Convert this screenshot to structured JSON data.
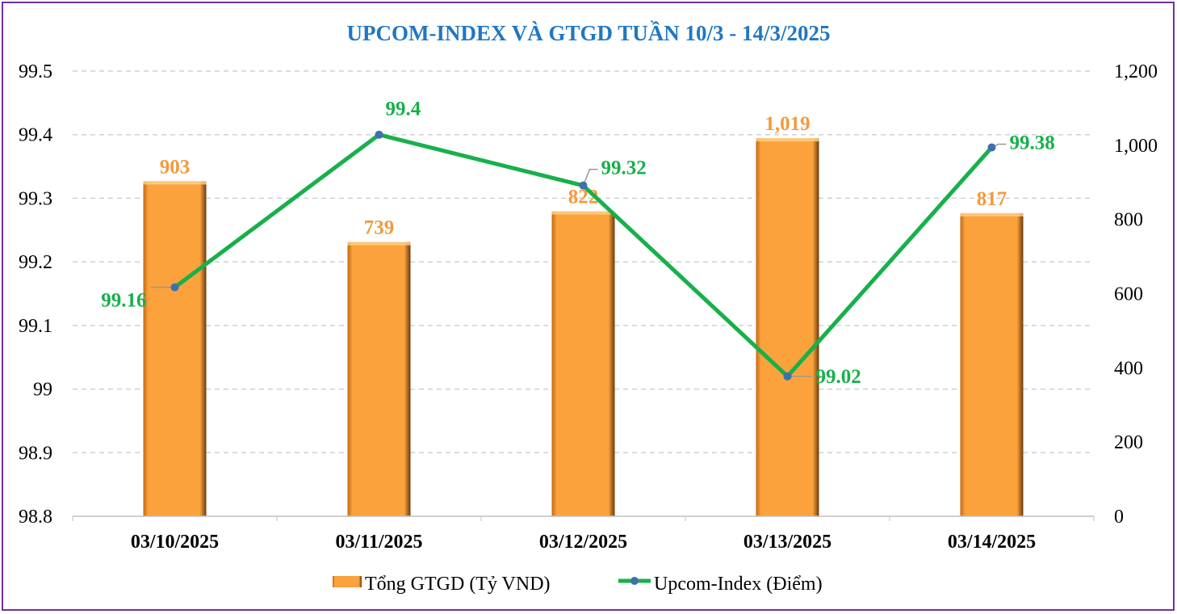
{
  "chart_data": {
    "type": "bar+line",
    "title": "UPCOM-INDEX VÀ GTGD TUẦN 10/3 -  14/3/2025",
    "categories": [
      "03/10/2025",
      "03/11/2025",
      "03/12/2025",
      "03/13/2025",
      "03/14/2025"
    ],
    "series": [
      {
        "name": "Tổng GTGD (Tỷ VND)",
        "type": "bar",
        "axis": "right",
        "values": [
          903,
          739,
          822,
          1019,
          817
        ],
        "labels": [
          "903",
          "739",
          "822",
          "1,019",
          "817"
        ],
        "color": "#f9a13a"
      },
      {
        "name": "Upcom-Index (Điểm)",
        "type": "line",
        "axis": "left",
        "values": [
          99.16,
          99.4,
          99.32,
          99.02,
          99.38
        ],
        "labels": [
          "99.16",
          "99.4",
          "99.32",
          "99.02",
          "99.38"
        ],
        "color": "#17b04a",
        "marker_color": "#3f6fb0"
      }
    ],
    "left_axis": {
      "ylim": [
        98.8,
        99.5
      ],
      "ticks": [
        "98.8",
        "98.9",
        "99",
        "99.1",
        "99.2",
        "99.3",
        "99.4",
        "99.5"
      ]
    },
    "right_axis": {
      "ylim": [
        0,
        1200
      ],
      "ticks": [
        "0",
        "200",
        "400",
        "600",
        "800",
        "1,000",
        "1,200"
      ]
    },
    "grid": true,
    "legend_placement": "bottom",
    "colors": {
      "title": "#1f77c4",
      "frame": "#7030a0",
      "bar_label": "#f39a3c",
      "line_label": "#17b04a"
    }
  }
}
